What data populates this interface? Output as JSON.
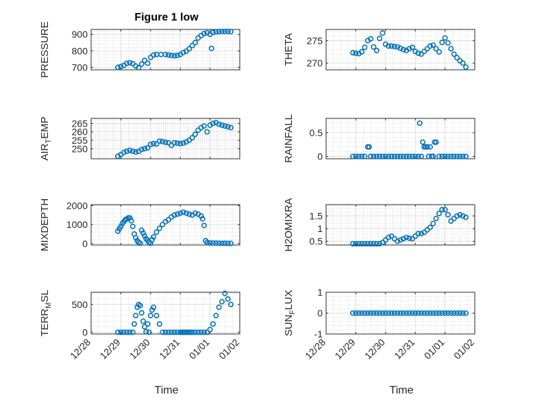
{
  "figure": {
    "title": "Figure 1 low",
    "xlabel": "Time",
    "x_ticks": [
      "12/28",
      "12/29",
      "12/30",
      "12/31",
      "01/01",
      "01/02"
    ],
    "marker_color": "#0072BD"
  },
  "chart_data": [
    {
      "type": "scatter",
      "name": "PRESSURE",
      "ylabel": "PRESSURE",
      "xlim": [
        "12/28",
        "01/02"
      ],
      "ylim": [
        685,
        930
      ],
      "yticks": [
        700,
        800,
        900
      ],
      "grid": true,
      "x": [
        0.9,
        1.0,
        1.1,
        1.2,
        1.3,
        1.4,
        1.5,
        1.6,
        1.7,
        1.8,
        1.9,
        2.0,
        2.1,
        2.2,
        2.35,
        2.5,
        2.6,
        2.7,
        2.8,
        2.9,
        3.0,
        3.1,
        3.2,
        3.3,
        3.4,
        3.5,
        3.6,
        3.7,
        3.8,
        3.9,
        4.0,
        4.05,
        4.1,
        4.2,
        4.3,
        4.4,
        4.5,
        4.6,
        4.7
      ],
      "y": [
        700,
        705,
        712,
        724,
        728,
        722,
        708,
        698,
        720,
        742,
        725,
        760,
        775,
        778,
        778,
        778,
        775,
        772,
        770,
        772,
        778,
        790,
        798,
        812,
        832,
        850,
        878,
        893,
        905,
        910,
        900,
        815,
        912,
        915,
        917,
        918,
        918,
        918,
        917
      ]
    },
    {
      "type": "scatter",
      "name": "THETA",
      "ylabel": "THETA",
      "xlim": [
        "12/28",
        "01/02"
      ],
      "ylim": [
        268.5,
        277.5
      ],
      "yticks": [
        270,
        275
      ],
      "grid": true,
      "x": [
        0.9,
        1.0,
        1.1,
        1.2,
        1.3,
        1.4,
        1.5,
        1.6,
        1.7,
        1.8,
        1.9,
        2.0,
        2.1,
        2.2,
        2.3,
        2.4,
        2.5,
        2.6,
        2.7,
        2.8,
        2.9,
        3.0,
        3.1,
        3.2,
        3.3,
        3.4,
        3.5,
        3.6,
        3.7,
        3.8,
        3.9,
        4.0,
        4.1,
        4.2,
        4.3,
        4.4,
        4.5,
        4.6,
        4.7
      ],
      "y": [
        272.3,
        272.2,
        272.1,
        272.5,
        273.5,
        275,
        275.4,
        273.6,
        272.8,
        275.5,
        276.7,
        274.2,
        273.8,
        273.8,
        273.7,
        273.6,
        273.3,
        273.0,
        272.8,
        273.2,
        273.5,
        272.6,
        272.2,
        272.0,
        272.6,
        273.2,
        273.8,
        274.0,
        273.2,
        272.5,
        274.6,
        275.6,
        274.5,
        273.2,
        272.0,
        271.2,
        270.5,
        270.0,
        269.1
      ]
    },
    {
      "type": "scatter",
      "name": "AIR_TEMP",
      "ylabel": "AIR_TEMP",
      "xlim": [
        "12/28",
        "01/02"
      ],
      "ylim": [
        244,
        268
      ],
      "yticks": [
        250,
        255,
        260,
        265
      ],
      "grid": true,
      "x": [
        0.9,
        1.0,
        1.1,
        1.2,
        1.3,
        1.4,
        1.5,
        1.6,
        1.7,
        1.8,
        1.9,
        2.0,
        2.1,
        2.2,
        2.3,
        2.4,
        2.5,
        2.6,
        2.7,
        2.8,
        2.9,
        3.0,
        3.1,
        3.2,
        3.3,
        3.4,
        3.5,
        3.6,
        3.7,
        3.8,
        3.9,
        4.0,
        4.1,
        4.2,
        4.3,
        4.4,
        4.5,
        4.6,
        4.7
      ],
      "y": [
        245.5,
        246.5,
        247.8,
        248.5,
        249.0,
        248.5,
        248.0,
        248.4,
        249.5,
        250.0,
        250.5,
        252.5,
        253.0,
        252.8,
        254.5,
        254.2,
        253.8,
        253.5,
        252.0,
        253.5,
        253.3,
        253.0,
        253.3,
        254.0,
        255.0,
        256.5,
        258.5,
        261.0,
        262.5,
        263.5,
        260.0,
        264.0,
        265.0,
        265.5,
        264.5,
        264.0,
        263.5,
        263.0,
        262.5
      ]
    },
    {
      "type": "scatter",
      "name": "RAINFALL",
      "ylabel": "RAINFALL",
      "xlim": [
        "12/28",
        "01/02"
      ],
      "ylim": [
        -0.05,
        0.8
      ],
      "yticks": [
        0,
        0.5
      ],
      "grid": true,
      "x": [
        0.9,
        1.0,
        1.1,
        1.2,
        1.3,
        1.4,
        1.45,
        1.5,
        1.6,
        1.7,
        1.8,
        1.9,
        2.0,
        2.1,
        2.2,
        2.3,
        2.4,
        2.5,
        2.6,
        2.7,
        2.8,
        2.9,
        3.0,
        3.1,
        3.15,
        3.2,
        3.25,
        3.3,
        3.35,
        3.4,
        3.45,
        3.5,
        3.55,
        3.6,
        3.65,
        3.7,
        3.8,
        3.9,
        4.0,
        4.1,
        4.2,
        4.3,
        4.4,
        4.5,
        4.6,
        4.7
      ],
      "y": [
        0,
        0,
        0,
        0,
        0,
        0.2,
        0.2,
        0,
        0,
        0,
        0,
        0,
        0,
        0,
        0,
        0,
        0,
        0,
        0,
        0,
        0,
        0,
        0,
        0,
        0.7,
        0,
        0.3,
        0.2,
        0.2,
        0.2,
        0,
        0.2,
        0,
        0,
        0.3,
        0.3,
        0,
        0,
        0,
        0,
        0,
        0,
        0,
        0,
        0,
        0
      ]
    },
    {
      "type": "scatter",
      "name": "MIXDEPTH",
      "ylabel": "MIXDEPTH",
      "xlim": [
        "12/28",
        "01/02"
      ],
      "ylim": [
        -80,
        2050
      ],
      "yticks": [
        0,
        1000,
        2000
      ],
      "grid": true,
      "x": [
        0.9,
        0.95,
        1.0,
        1.05,
        1.1,
        1.15,
        1.2,
        1.25,
        1.3,
        1.35,
        1.4,
        1.45,
        1.5,
        1.55,
        1.6,
        1.65,
        1.7,
        1.75,
        1.8,
        1.85,
        1.9,
        1.95,
        2.0,
        2.05,
        2.1,
        2.2,
        2.3,
        2.4,
        2.5,
        2.6,
        2.7,
        2.8,
        2.9,
        3.0,
        3.1,
        3.2,
        3.3,
        3.4,
        3.5,
        3.6,
        3.7,
        3.75,
        3.8,
        3.85,
        3.9,
        4.0,
        4.1,
        4.2,
        4.3,
        4.4,
        4.5,
        4.6,
        4.7
      ],
      "y": [
        650,
        780,
        900,
        1050,
        1150,
        1250,
        1300,
        1350,
        1350,
        1200,
        900,
        500,
        300,
        150,
        60,
        10,
        700,
        550,
        400,
        250,
        150,
        60,
        10,
        200,
        350,
        600,
        800,
        1000,
        1150,
        1250,
        1400,
        1500,
        1550,
        1600,
        1650,
        1600,
        1550,
        1500,
        1600,
        1550,
        1450,
        1300,
        950,
        150,
        60,
        30,
        20,
        20,
        15,
        10,
        10,
        10,
        5
      ]
    },
    {
      "type": "scatter",
      "name": "H2OMIXRA",
      "ylabel": "H2OMIXRA",
      "xlim": [
        "12/28",
        "01/02"
      ],
      "ylim": [
        0.35,
        1.95
      ],
      "yticks": [
        0.5,
        1,
        1.5
      ],
      "grid": true,
      "x": [
        0.9,
        1.0,
        1.1,
        1.2,
        1.3,
        1.4,
        1.5,
        1.6,
        1.7,
        1.8,
        1.9,
        2.0,
        2.1,
        2.2,
        2.3,
        2.4,
        2.5,
        2.6,
        2.7,
        2.8,
        2.9,
        3.0,
        3.1,
        3.2,
        3.3,
        3.4,
        3.5,
        3.6,
        3.7,
        3.8,
        3.9,
        4.0,
        4.1,
        4.2,
        4.3,
        4.4,
        4.5,
        4.6,
        4.7
      ],
      "y": [
        0.4,
        0.4,
        0.4,
        0.4,
        0.4,
        0.4,
        0.4,
        0.4,
        0.4,
        0.4,
        0.45,
        0.55,
        0.65,
        0.7,
        0.6,
        0.5,
        0.55,
        0.6,
        0.65,
        0.62,
        0.6,
        0.7,
        0.8,
        0.8,
        0.85,
        0.95,
        1.05,
        1.2,
        1.4,
        1.6,
        1.75,
        1.75,
        1.55,
        1.3,
        1.4,
        1.5,
        1.55,
        1.5,
        1.45
      ]
    },
    {
      "type": "scatter",
      "name": "TERR_MSL",
      "ylabel": "TERR_MSL",
      "xlim": [
        "12/28",
        "01/02"
      ],
      "ylim": [
        -30,
        720
      ],
      "yticks": [
        0,
        500
      ],
      "grid": true,
      "x": [
        0.9,
        1.0,
        1.1,
        1.2,
        1.3,
        1.4,
        1.45,
        1.5,
        1.55,
        1.6,
        1.65,
        1.7,
        1.75,
        1.8,
        1.85,
        1.9,
        1.95,
        2.0,
        2.05,
        2.1,
        2.2,
        2.3,
        2.4,
        2.5,
        2.6,
        2.7,
        2.8,
        2.9,
        3.0,
        3.05,
        3.1,
        3.15,
        3.2,
        3.25,
        3.3,
        3.35,
        3.4,
        3.5,
        3.6,
        3.7,
        3.8,
        3.9,
        4.0,
        4.1,
        4.2,
        4.3,
        4.4,
        4.5,
        4.6,
        4.7
      ],
      "y": [
        0,
        0,
        0,
        0,
        0,
        0,
        150,
        300,
        450,
        500,
        480,
        350,
        200,
        100,
        10,
        150,
        0,
        300,
        400,
        450,
        300,
        150,
        0,
        0,
        0,
        0,
        0,
        0,
        0,
        0,
        0,
        0,
        0,
        0,
        0,
        0,
        0,
        0,
        0,
        0,
        0,
        0,
        50,
        150,
        300,
        450,
        550,
        700,
        600,
        500
      ]
    },
    {
      "type": "scatter",
      "name": "SUN_FLUX",
      "ylabel": "SUN_FLUX",
      "xlim": [
        "12/28",
        "01/02"
      ],
      "ylim": [
        -1,
        1
      ],
      "yticks": [
        -1,
        0,
        1
      ],
      "grid": true,
      "x": [
        0.9,
        1.0,
        1.1,
        1.2,
        1.3,
        1.4,
        1.5,
        1.6,
        1.7,
        1.8,
        1.9,
        2.0,
        2.1,
        2.2,
        2.3,
        2.4,
        2.5,
        2.6,
        2.7,
        2.8,
        2.9,
        3.0,
        3.1,
        3.2,
        3.3,
        3.4,
        3.5,
        3.6,
        3.7,
        3.8,
        3.9,
        4.0,
        4.1,
        4.2,
        4.3,
        4.4,
        4.5,
        4.6,
        4.7
      ],
      "y": [
        0,
        0,
        0,
        0,
        0,
        0,
        0,
        0,
        0,
        0,
        0,
        0,
        0,
        0,
        0,
        0,
        0,
        0,
        0,
        0,
        0,
        0,
        0,
        0,
        0,
        0,
        0,
        0,
        0,
        0,
        0,
        0,
        0,
        0,
        0,
        0,
        0,
        0,
        0
      ]
    }
  ]
}
